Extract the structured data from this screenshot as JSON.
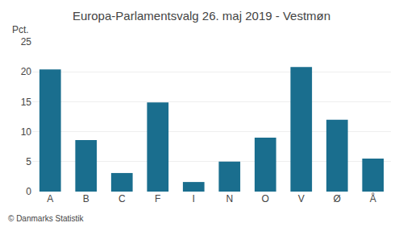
{
  "chart_data": {
    "type": "bar",
    "title": "Europa-Parlamentsvalg 26. maj 2019 - Vestmøn",
    "categories": [
      "A",
      "B",
      "C",
      "F",
      "I",
      "N",
      "O",
      "V",
      "Ø",
      "Å"
    ],
    "values": [
      20.4,
      8.6,
      3.1,
      14.9,
      1.6,
      5.0,
      9.0,
      20.8,
      12.0,
      5.5
    ],
    "color": "#1a6e8e",
    "ylabel": "Pct.",
    "ylim": [
      0,
      25
    ],
    "yticks": [
      0,
      5,
      10,
      15,
      20,
      25
    ],
    "grid": true,
    "annotations": [
      "© Danmarks Statistik"
    ]
  }
}
